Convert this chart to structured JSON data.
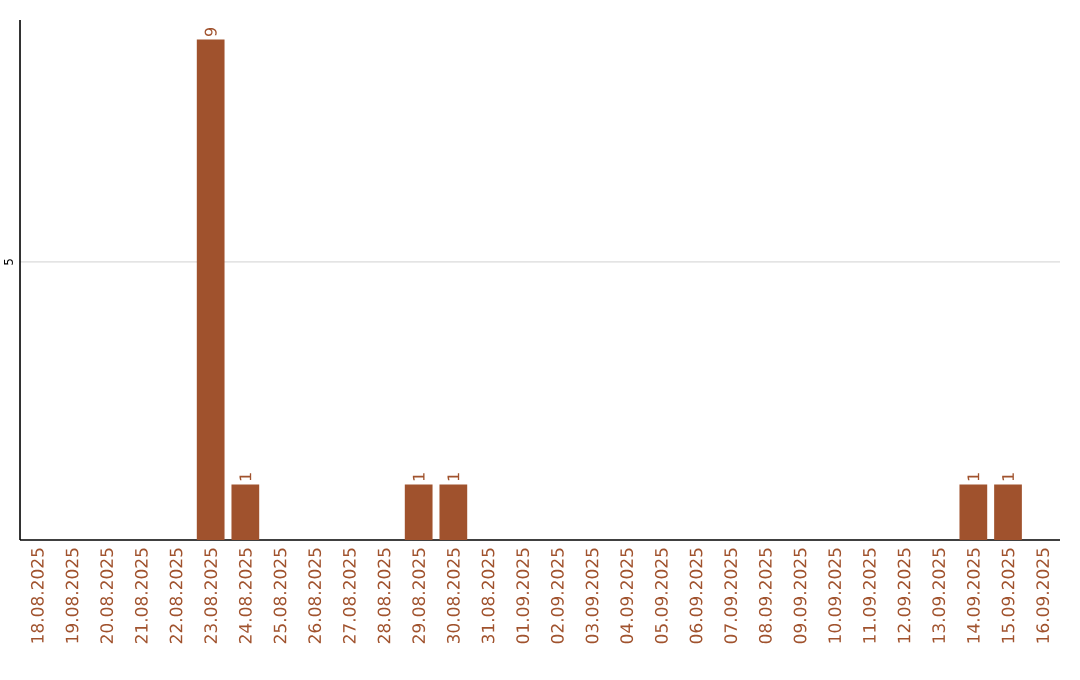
{
  "chart_data": {
    "type": "bar",
    "categories": [
      "18.08.2025",
      "19.08.2025",
      "20.08.2025",
      "21.08.2025",
      "22.08.2025",
      "23.08.2025",
      "24.08.2025",
      "25.08.2025",
      "26.08.2025",
      "27.08.2025",
      "28.08.2025",
      "29.08.2025",
      "30.08.2025",
      "31.08.2025",
      "01.09.2025",
      "02.09.2025",
      "03.09.2025",
      "04.09.2025",
      "05.09.2025",
      "06.09.2025",
      "07.09.2025",
      "08.09.2025",
      "09.09.2025",
      "10.09.2025",
      "11.09.2025",
      "12.09.2025",
      "13.09.2025",
      "14.09.2025",
      "15.09.2025",
      "16.09.2025"
    ],
    "values": [
      0,
      0,
      0,
      0,
      0,
      9,
      1,
      0,
      0,
      0,
      0,
      1,
      1,
      0,
      0,
      0,
      0,
      0,
      0,
      0,
      0,
      0,
      0,
      0,
      0,
      0,
      0,
      1,
      1,
      0
    ],
    "value_labels": [
      null,
      null,
      null,
      null,
      null,
      "9",
      "1",
      null,
      null,
      null,
      null,
      "1",
      "1",
      null,
      null,
      null,
      null,
      null,
      null,
      null,
      null,
      null,
      null,
      null,
      null,
      null,
      null,
      "1",
      "1",
      null
    ],
    "color": "#a0522d",
    "ylim": [
      0,
      9.35
    ],
    "yticks": [
      5
    ],
    "grid": "y"
  }
}
